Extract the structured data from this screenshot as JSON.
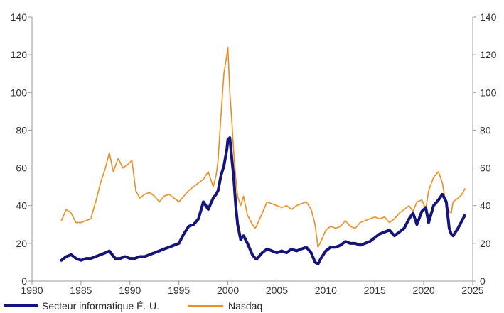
{
  "chart_data": {
    "type": "line",
    "title": "",
    "xlabel": "",
    "ylabel": "",
    "xlim": [
      1980,
      2025
    ],
    "ylim": [
      0,
      140
    ],
    "x_ticks": [
      1980,
      1985,
      1990,
      1995,
      2000,
      2005,
      2010,
      2015,
      2020,
      2025
    ],
    "y_ticks": [
      0,
      20,
      40,
      60,
      80,
      100,
      120,
      140
    ],
    "y_ticks_right": [
      0,
      20,
      40,
      60,
      80,
      100,
      120,
      140
    ],
    "grid": false,
    "legend_position": "bottom-left",
    "series": [
      {
        "name": "Secteur informatique É.-U.",
        "color": "#14147a",
        "x": [
          1983.0,
          1983.5,
          1984.0,
          1984.5,
          1985.0,
          1985.5,
          1986.0,
          1986.5,
          1987.0,
          1987.5,
          1987.9,
          1988.5,
          1989.0,
          1989.5,
          1990.0,
          1990.5,
          1991.0,
          1991.5,
          1992.0,
          1992.5,
          1993.0,
          1993.5,
          1994.0,
          1994.5,
          1995.0,
          1995.5,
          1996.0,
          1996.5,
          1997.0,
          1997.5,
          1998.0,
          1998.5,
          1998.8,
          1999.0,
          1999.3,
          1999.6,
          1999.9,
          2000.0,
          2000.2,
          2000.4,
          2000.6,
          2000.8,
          2001.0,
          2001.3,
          2001.6,
          2002.0,
          2002.5,
          2002.8,
          2003.0,
          2003.5,
          2004.0,
          2004.5,
          2005.0,
          2005.5,
          2006.0,
          2006.5,
          2007.0,
          2007.5,
          2008.0,
          2008.5,
          2008.9,
          2009.2,
          2009.5,
          2010.0,
          2010.5,
          2011.0,
          2011.5,
          2012.0,
          2012.5,
          2013.0,
          2013.5,
          2014.0,
          2014.5,
          2015.0,
          2015.5,
          2016.0,
          2016.5,
          2017.0,
          2017.5,
          2018.0,
          2018.5,
          2018.9,
          2019.3,
          2019.8,
          2020.2,
          2020.5,
          2021.0,
          2021.5,
          2021.9,
          2022.3,
          2022.6,
          2022.8,
          2023.0,
          2023.5,
          2023.9,
          2024.2
        ],
        "y": [
          11,
          13,
          14,
          12,
          11,
          12,
          12,
          13,
          14,
          15,
          16,
          12,
          12,
          13,
          12,
          12,
          13,
          13,
          14,
          15,
          16,
          17,
          18,
          19,
          20,
          25,
          29,
          30,
          33,
          42,
          38,
          44,
          46,
          48,
          56,
          61,
          70,
          75,
          76,
          65,
          55,
          40,
          30,
          22,
          24,
          20,
          14,
          12,
          12,
          15,
          17,
          16,
          15,
          16,
          15,
          17,
          16,
          17,
          18,
          15,
          10,
          9,
          12,
          16,
          18,
          18,
          19,
          21,
          20,
          20,
          19,
          20,
          21,
          23,
          25,
          26,
          27,
          24,
          26,
          28,
          33,
          36,
          30,
          37,
          39,
          31,
          40,
          43,
          46,
          42,
          28,
          25,
          24,
          28,
          32,
          35
        ]
      },
      {
        "name": "Nasdaq",
        "color": "#f08c1e",
        "x": [
          1983.0,
          1983.5,
          1984.0,
          1984.5,
          1985.0,
          1985.5,
          1986.0,
          1986.5,
          1987.0,
          1987.5,
          1987.9,
          1988.3,
          1988.8,
          1989.3,
          1989.8,
          1990.2,
          1990.6,
          1991.0,
          1991.5,
          1992.0,
          1992.5,
          1993.0,
          1993.5,
          1994.0,
          1994.5,
          1995.0,
          1995.5,
          1996.0,
          1996.5,
          1997.0,
          1997.5,
          1998.0,
          1998.5,
          1998.8,
          1999.0,
          1999.3,
          1999.6,
          1999.9,
          2000.0,
          2000.2,
          2000.4,
          2000.6,
          2000.8,
          2001.0,
          2001.3,
          2001.6,
          2002.0,
          2002.5,
          2002.8,
          2003.0,
          2003.5,
          2004.0,
          2004.5,
          2005.0,
          2005.5,
          2006.0,
          2006.5,
          2007.0,
          2007.5,
          2008.0,
          2008.5,
          2008.9,
          2009.2,
          2009.5,
          2010.0,
          2010.5,
          2011.0,
          2011.5,
          2012.0,
          2012.5,
          2013.0,
          2013.5,
          2014.0,
          2014.5,
          2015.0,
          2015.5,
          2016.0,
          2016.5,
          2017.0,
          2017.5,
          2018.0,
          2018.5,
          2018.9,
          2019.3,
          2019.8,
          2020.2,
          2020.5,
          2021.0,
          2021.5,
          2021.9,
          2022.3,
          2022.6,
          2022.8,
          2023.0,
          2023.5,
          2023.9,
          2024.2
        ],
        "y": [
          32,
          38,
          36,
          31,
          31,
          32,
          33,
          42,
          52,
          60,
          68,
          58,
          65,
          60,
          62,
          64,
          48,
          44,
          46,
          47,
          45,
          42,
          45,
          46,
          44,
          42,
          45,
          48,
          50,
          52,
          54,
          58,
          50,
          56,
          64,
          88,
          110,
          120,
          124,
          100,
          85,
          68,
          55,
          45,
          40,
          45,
          35,
          30,
          28,
          30,
          36,
          42,
          41,
          40,
          39,
          40,
          38,
          40,
          41,
          42,
          38,
          30,
          18,
          21,
          27,
          29,
          28,
          29,
          32,
          29,
          28,
          31,
          32,
          33,
          34,
          33,
          34,
          31,
          33,
          36,
          38,
          40,
          37,
          42,
          43,
          38,
          48,
          55,
          58,
          52,
          40,
          37,
          36,
          42,
          44,
          46,
          49
        ]
      }
    ]
  }
}
